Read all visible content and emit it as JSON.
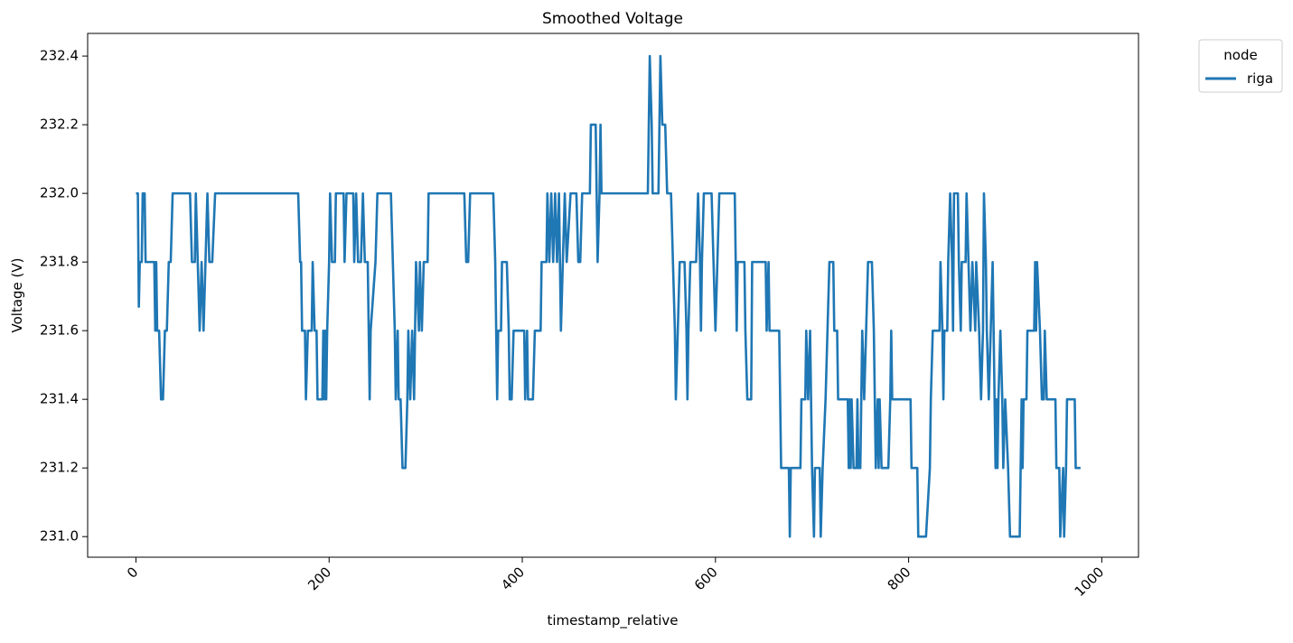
{
  "chart_data": {
    "type": "line",
    "title": "Smoothed Voltage",
    "xlabel": "timestamp_relative",
    "ylabel": "Voltage (V)",
    "xlim": [
      -50,
      1038
    ],
    "ylim": [
      230.94,
      232.466
    ],
    "x_ticks": [
      0,
      200,
      400,
      600,
      800,
      1000
    ],
    "x_tick_labels": [
      "0",
      "200",
      "400",
      "600",
      "800",
      "1000"
    ],
    "y_ticks": [
      231.0,
      231.2,
      231.4,
      231.6,
      231.8,
      232.0,
      232.2,
      232.4
    ],
    "y_tick_labels": [
      "231.0",
      "231.2",
      "231.4",
      "231.6",
      "231.8",
      "232.0",
      "232.2",
      "232.4"
    ],
    "x_tick_rotation": 45,
    "grid": false,
    "legend": {
      "title": "node",
      "position": "outside-top-right",
      "entries": [
        "riga"
      ]
    },
    "series": [
      {
        "name": "riga",
        "color": "#1f77b4",
        "points": [
          [
            0,
            232.0
          ],
          [
            2,
            232.0
          ],
          [
            3,
            231.67
          ],
          [
            4,
            231.8
          ],
          [
            6,
            231.8
          ],
          [
            7,
            232.0
          ],
          [
            9,
            232.0
          ],
          [
            10,
            231.8
          ],
          [
            19,
            231.8
          ],
          [
            20,
            231.6
          ],
          [
            21,
            231.8
          ],
          [
            22,
            231.6
          ],
          [
            24,
            231.6
          ],
          [
            26,
            231.4
          ],
          [
            28,
            231.4
          ],
          [
            30,
            231.6
          ],
          [
            32,
            231.6
          ],
          [
            34,
            231.8
          ],
          [
            36,
            231.8
          ],
          [
            38,
            232.0
          ],
          [
            56,
            232.0
          ],
          [
            58,
            231.8
          ],
          [
            61,
            231.8
          ],
          [
            62,
            232.0
          ],
          [
            64,
            231.8
          ],
          [
            66,
            231.6
          ],
          [
            68,
            231.8
          ],
          [
            70,
            231.6
          ],
          [
            72,
            231.8
          ],
          [
            74,
            232.0
          ],
          [
            76,
            231.8
          ],
          [
            79,
            231.8
          ],
          [
            82,
            232.0
          ],
          [
            168,
            232.0
          ],
          [
            170,
            231.8
          ],
          [
            171,
            231.8
          ],
          [
            172,
            231.6
          ],
          [
            175,
            231.6
          ],
          [
            176,
            231.4
          ],
          [
            178,
            231.6
          ],
          [
            182,
            231.6
          ],
          [
            183,
            231.8
          ],
          [
            185,
            231.6
          ],
          [
            187,
            231.6
          ],
          [
            188,
            231.4
          ],
          [
            193,
            231.4
          ],
          [
            194,
            231.6
          ],
          [
            195,
            231.4
          ],
          [
            196,
            231.6
          ],
          [
            197,
            231.4
          ],
          [
            198,
            231.6
          ],
          [
            200,
            231.8
          ],
          [
            201,
            232.0
          ],
          [
            203,
            231.8
          ],
          [
            206,
            231.8
          ],
          [
            207,
            232.0
          ],
          [
            215,
            232.0
          ],
          [
            216,
            231.8
          ],
          [
            218,
            232.0
          ],
          [
            225,
            232.0
          ],
          [
            226,
            231.8
          ],
          [
            228,
            232.0
          ],
          [
            230,
            231.8
          ],
          [
            233,
            231.8
          ],
          [
            235,
            232.0
          ],
          [
            237,
            231.8
          ],
          [
            240,
            231.8
          ],
          [
            241,
            231.6
          ],
          [
            242,
            231.4
          ],
          [
            243,
            231.6
          ],
          [
            248,
            231.8
          ],
          [
            250,
            232.0
          ],
          [
            264,
            232.0
          ],
          [
            266,
            231.8
          ],
          [
            268,
            231.6
          ],
          [
            269,
            231.4
          ],
          [
            271,
            231.6
          ],
          [
            272,
            231.4
          ],
          [
            274,
            231.4
          ],
          [
            276,
            231.2
          ],
          [
            279,
            231.2
          ],
          [
            281,
            231.4
          ],
          [
            282,
            231.6
          ],
          [
            284,
            231.4
          ],
          [
            286,
            231.6
          ],
          [
            288,
            231.4
          ],
          [
            290,
            231.8
          ],
          [
            293,
            231.6
          ],
          [
            294,
            231.8
          ],
          [
            296,
            231.6
          ],
          [
            298,
            231.8
          ],
          [
            302,
            231.8
          ],
          [
            303,
            232.0
          ],
          [
            340,
            232.0
          ],
          [
            342,
            231.8
          ],
          [
            344,
            231.8
          ],
          [
            346,
            232.0
          ],
          [
            370,
            232.0
          ],
          [
            372,
            231.8
          ],
          [
            373,
            231.6
          ],
          [
            374,
            231.4
          ],
          [
            375,
            231.6
          ],
          [
            378,
            231.6
          ],
          [
            379,
            231.8
          ],
          [
            384,
            231.8
          ],
          [
            386,
            231.6
          ],
          [
            387,
            231.4
          ],
          [
            389,
            231.4
          ],
          [
            391,
            231.6
          ],
          [
            402,
            231.6
          ],
          [
            403,
            231.4
          ],
          [
            405,
            231.6
          ],
          [
            406,
            231.4
          ],
          [
            411,
            231.4
          ],
          [
            413,
            231.6
          ],
          [
            419,
            231.6
          ],
          [
            420,
            231.8
          ],
          [
            425,
            231.8
          ],
          [
            426,
            232.0
          ],
          [
            428,
            231.8
          ],
          [
            430,
            232.0
          ],
          [
            432,
            231.8
          ],
          [
            434,
            232.0
          ],
          [
            436,
            231.8
          ],
          [
            438,
            232.0
          ],
          [
            440,
            231.6
          ],
          [
            442,
            231.8
          ],
          [
            444,
            232.0
          ],
          [
            446,
            231.8
          ],
          [
            450,
            232.0
          ],
          [
            456,
            232.0
          ],
          [
            458,
            231.8
          ],
          [
            460,
            231.8
          ],
          [
            462,
            232.0
          ],
          [
            468,
            232.0
          ],
          [
            470,
            232.0
          ],
          [
            471,
            232.2
          ],
          [
            476,
            232.2
          ],
          [
            477,
            232.0
          ],
          [
            478,
            231.8
          ],
          [
            480,
            232.0
          ],
          [
            481,
            232.2
          ],
          [
            482,
            232.0
          ],
          [
            530,
            232.0
          ],
          [
            531,
            232.2
          ],
          [
            532,
            232.4
          ],
          [
            534,
            232.2
          ],
          [
            535,
            232.0
          ],
          [
            541,
            232.0
          ],
          [
            542,
            232.2
          ],
          [
            543,
            232.4
          ],
          [
            545,
            232.2
          ],
          [
            548,
            232.2
          ],
          [
            550,
            232.0
          ],
          [
            554,
            232.0
          ],
          [
            556,
            231.8
          ],
          [
            558,
            231.6
          ],
          [
            559,
            231.4
          ],
          [
            561,
            231.6
          ],
          [
            563,
            231.8
          ],
          [
            568,
            231.8
          ],
          [
            570,
            231.6
          ],
          [
            571,
            231.4
          ],
          [
            572,
            231.6
          ],
          [
            574,
            231.8
          ],
          [
            580,
            231.8
          ],
          [
            582,
            232.0
          ],
          [
            584,
            231.8
          ],
          [
            585,
            231.6
          ],
          [
            586,
            231.8
          ],
          [
            588,
            232.0
          ],
          [
            596,
            232.0
          ],
          [
            598,
            231.8
          ],
          [
            600,
            231.6
          ],
          [
            602,
            231.8
          ],
          [
            604,
            232.0
          ],
          [
            620,
            232.0
          ],
          [
            621,
            231.8
          ],
          [
            622,
            231.6
          ],
          [
            623,
            231.8
          ],
          [
            630,
            231.8
          ],
          [
            631,
            231.6
          ],
          [
            633,
            231.4
          ],
          [
            637,
            231.4
          ],
          [
            638,
            231.8
          ],
          [
            652,
            231.8
          ],
          [
            653,
            231.6
          ],
          [
            655,
            231.8
          ],
          [
            656,
            231.6
          ],
          [
            666,
            231.6
          ],
          [
            668,
            231.2
          ],
          [
            676,
            231.2
          ],
          [
            677,
            231.0
          ],
          [
            678,
            231.2
          ],
          [
            688,
            231.2
          ],
          [
            689,
            231.4
          ],
          [
            693,
            231.4
          ],
          [
            694,
            231.6
          ],
          [
            696,
            231.4
          ],
          [
            698,
            231.6
          ],
          [
            700,
            231.2
          ],
          [
            702,
            231.0
          ],
          [
            703,
            231.2
          ],
          [
            708,
            231.2
          ],
          [
            709,
            231.0
          ],
          [
            711,
            231.2
          ],
          [
            714,
            231.4
          ],
          [
            716,
            231.6
          ],
          [
            718,
            231.8
          ],
          [
            722,
            231.8
          ],
          [
            723,
            231.6
          ],
          [
            726,
            231.6
          ],
          [
            727,
            231.4
          ],
          [
            737,
            231.4
          ],
          [
            738,
            231.2
          ],
          [
            739,
            231.4
          ],
          [
            740,
            231.2
          ],
          [
            741,
            231.4
          ],
          [
            743,
            231.2
          ],
          [
            746,
            231.2
          ],
          [
            747,
            231.4
          ],
          [
            748,
            231.2
          ],
          [
            750,
            231.2
          ],
          [
            751,
            231.4
          ],
          [
            752,
            231.6
          ],
          [
            754,
            231.4
          ],
          [
            756,
            231.6
          ],
          [
            758,
            231.8
          ],
          [
            762,
            231.8
          ],
          [
            764,
            231.6
          ],
          [
            766,
            231.2
          ],
          [
            768,
            231.4
          ],
          [
            769,
            231.2
          ],
          [
            770,
            231.4
          ],
          [
            772,
            231.2
          ],
          [
            779,
            231.2
          ],
          [
            781,
            231.4
          ],
          [
            782,
            231.6
          ],
          [
            783,
            231.4
          ],
          [
            802,
            231.4
          ],
          [
            803,
            231.2
          ],
          [
            809,
            231.2
          ],
          [
            810,
            231.0
          ],
          [
            818,
            231.0
          ],
          [
            822,
            231.2
          ],
          [
            823,
            231.4
          ],
          [
            825,
            231.6
          ],
          [
            832,
            231.6
          ],
          [
            833,
            231.8
          ],
          [
            835,
            231.6
          ],
          [
            836,
            231.4
          ],
          [
            837,
            231.6
          ],
          [
            840,
            231.6
          ],
          [
            841,
            231.8
          ],
          [
            843,
            232.0
          ],
          [
            845,
            231.8
          ],
          [
            846,
            231.6
          ],
          [
            847,
            232.0
          ],
          [
            851,
            232.0
          ],
          [
            852,
            231.8
          ],
          [
            854,
            231.6
          ],
          [
            855,
            231.8
          ],
          [
            859,
            231.8
          ],
          [
            860,
            232.0
          ],
          [
            862,
            231.8
          ],
          [
            864,
            231.6
          ],
          [
            866,
            231.8
          ],
          [
            869,
            231.6
          ],
          [
            870,
            231.8
          ],
          [
            873,
            231.6
          ],
          [
            875,
            231.4
          ],
          [
            877,
            231.6
          ],
          [
            878,
            232.0
          ],
          [
            880,
            231.8
          ],
          [
            881,
            231.6
          ],
          [
            883,
            231.4
          ],
          [
            885,
            231.6
          ],
          [
            887,
            231.8
          ],
          [
            888,
            231.6
          ],
          [
            889,
            231.4
          ],
          [
            890,
            231.2
          ],
          [
            891,
            231.4
          ],
          [
            892,
            231.2
          ],
          [
            893,
            231.4
          ],
          [
            895,
            231.6
          ],
          [
            897,
            231.4
          ],
          [
            898,
            231.2
          ],
          [
            900,
            231.4
          ],
          [
            903,
            231.2
          ],
          [
            905,
            231.0
          ],
          [
            915,
            231.0
          ],
          [
            916,
            231.2
          ],
          [
            917,
            231.4
          ],
          [
            918,
            231.2
          ],
          [
            919,
            231.4
          ],
          [
            922,
            231.4
          ],
          [
            923,
            231.6
          ],
          [
            930,
            231.6
          ],
          [
            931,
            231.8
          ],
          [
            932,
            231.6
          ],
          [
            933,
            231.8
          ],
          [
            936,
            231.6
          ],
          [
            938,
            231.4
          ],
          [
            940,
            231.4
          ],
          [
            941,
            231.6
          ],
          [
            943,
            231.4
          ],
          [
            952,
            231.4
          ],
          [
            953,
            231.2
          ],
          [
            956,
            231.2
          ],
          [
            957,
            231.0
          ],
          [
            960,
            231.2
          ],
          [
            961,
            231.0
          ],
          [
            963,
            231.2
          ],
          [
            964,
            231.4
          ],
          [
            972,
            231.4
          ],
          [
            973,
            231.2
          ],
          [
            978,
            231.2
          ]
        ]
      }
    ]
  }
}
